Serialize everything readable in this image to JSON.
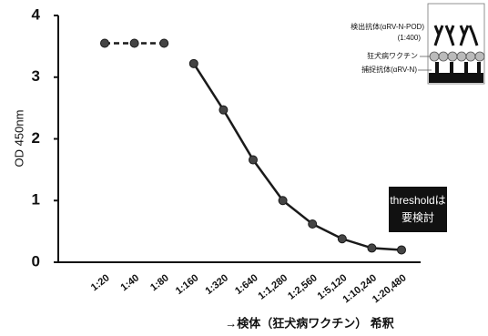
{
  "chart_data": {
    "type": "line",
    "categories": [
      "1:20",
      "1:40",
      "1:80",
      "1:160",
      "1:320",
      "1:640",
      "1:1,280",
      "1:2,560",
      "1:5,120",
      "1:10,240",
      "1:20,480"
    ],
    "series": [
      {
        "color": "#1a1a1a",
        "line_style": "dashed",
        "values": [
          3.55,
          3.55,
          3.55,
          null,
          null,
          null,
          null,
          null,
          null,
          null,
          null
        ]
      },
      {
        "color": "#1a1a1a",
        "line_style": "solid",
        "values": [
          null,
          null,
          null,
          3.22,
          2.47,
          1.66,
          1.0,
          0.62,
          0.38,
          0.23,
          0.2
        ]
      }
    ],
    "ylim": [
      0,
      4
    ],
    "yticks": [
      0,
      1,
      2,
      3,
      4
    ],
    "y_label": "OD 450nm",
    "x_label": "→検体（狂犬病ワクチン） 希釈",
    "annotation": [
      "thresholdは",
      "要検討"
    ],
    "diagram_labels": [
      "検出抗体(αRV-N-POD)",
      "(1:400)",
      "狂犬病ワクチン",
      "捕捉抗体(αRV-N)"
    ]
  }
}
